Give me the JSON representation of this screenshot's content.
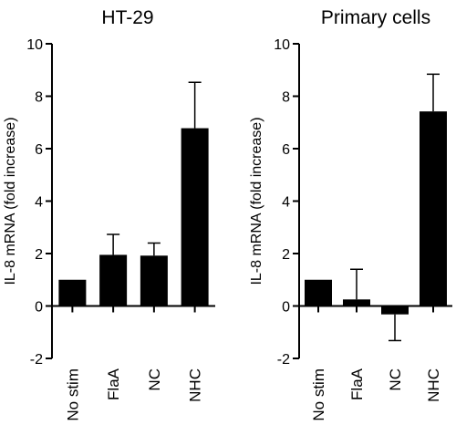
{
  "chart_data": [
    {
      "type": "bar",
      "title": "HT-29",
      "ylabel": "IL-8 mRNA (fold increase)",
      "xlabel": "",
      "categories": [
        "No stim",
        "FlaA",
        "NC",
        "NHC"
      ],
      "values": [
        1.0,
        1.95,
        1.92,
        6.78
      ],
      "error_plus": [
        0.0,
        0.78,
        0.48,
        1.75
      ],
      "error_style": "upper-only",
      "ylim": [
        -2,
        10
      ],
      "yticks": [
        -2,
        0,
        2,
        4,
        6,
        8,
        10
      ],
      "bar_color": "#000000",
      "grid": false,
      "legend": "none"
    },
    {
      "type": "bar",
      "title": "Primary cells",
      "ylabel": "IL-8 mRNA (fold increase)",
      "xlabel": "",
      "categories": [
        "No stim",
        "FlaA",
        "NC",
        "NHC"
      ],
      "values": [
        1.0,
        0.25,
        -0.32,
        7.42
      ],
      "error_plus": [
        0.0,
        1.15,
        1.0,
        1.42
      ],
      "error_style": "away-from-zero",
      "ylim": [
        -2,
        10
      ],
      "yticks": [
        -2,
        0,
        2,
        4,
        6,
        8,
        10
      ],
      "bar_color": "#000000",
      "grid": false,
      "legend": "none"
    }
  ]
}
